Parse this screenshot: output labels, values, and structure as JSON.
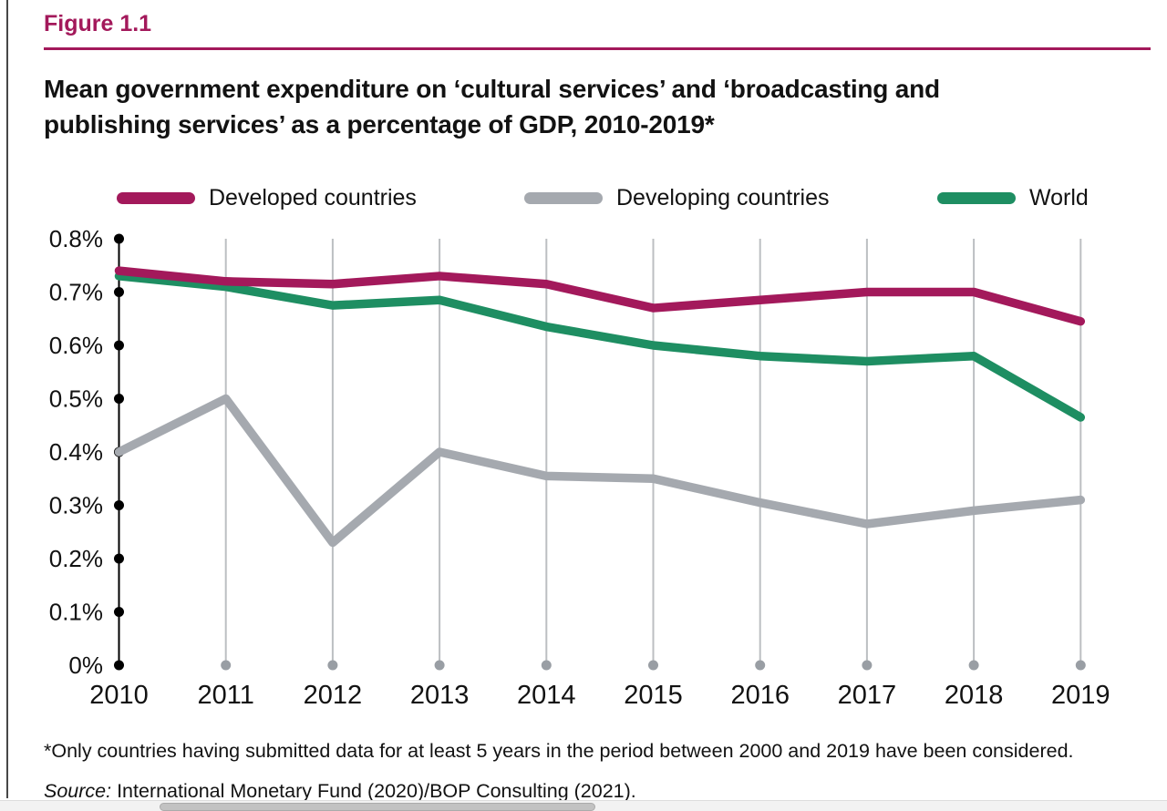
{
  "figure": {
    "label": "Figure 1.1",
    "title_lines": [
      "Mean government expenditure on ‘cultural services’ and ‘broadcasting and",
      "publishing services’ as a percentage of GDP, 2010-2019*"
    ],
    "accent_color": "#a3195b"
  },
  "chart_data": {
    "type": "line",
    "title": "Mean government expenditure on ‘cultural services’ and ‘broadcasting and publishing services’ as a percentage of GDP, 2010-2019*",
    "x": [
      2010,
      2011,
      2012,
      2013,
      2014,
      2015,
      2016,
      2017,
      2018,
      2019
    ],
    "series": [
      {
        "name": "Developed countries",
        "color": "#a3195b",
        "values": [
          0.74,
          0.72,
          0.715,
          0.73,
          0.715,
          0.67,
          0.685,
          0.7,
          0.7,
          0.645
        ]
      },
      {
        "name": "Developing countries",
        "color": "#a5a9af",
        "values": [
          0.4,
          0.5,
          0.23,
          0.4,
          0.355,
          0.35,
          0.305,
          0.265,
          0.29,
          0.31
        ]
      },
      {
        "name": "World",
        "color": "#1e8e62",
        "values": [
          0.73,
          0.71,
          0.675,
          0.685,
          0.635,
          0.6,
          0.58,
          0.57,
          0.58,
          0.465
        ]
      }
    ],
    "ylim": [
      0,
      0.8
    ],
    "ytick_values": [
      0,
      0.1,
      0.2,
      0.3,
      0.4,
      0.5,
      0.6,
      0.7,
      0.8
    ],
    "ytick_labels": [
      "0%",
      "0.1%",
      "0.2%",
      "0.3%",
      "0.4%",
      "0.5%",
      "0.6%",
      "0.7%",
      "0.8%"
    ],
    "grid": "vertical",
    "legend_position": "top",
    "axis_color": "#000000",
    "gridline_color": "#bcbfc2",
    "gridline_dot_color": "#999ea4"
  },
  "footnote": "*Only countries having submitted data for at least 5 years in the period between 2000 and 2019 have been considered.",
  "source": {
    "prefix": "Source:",
    "text": " International Monetary Fund (2020)/BOP Consulting (2021)."
  }
}
